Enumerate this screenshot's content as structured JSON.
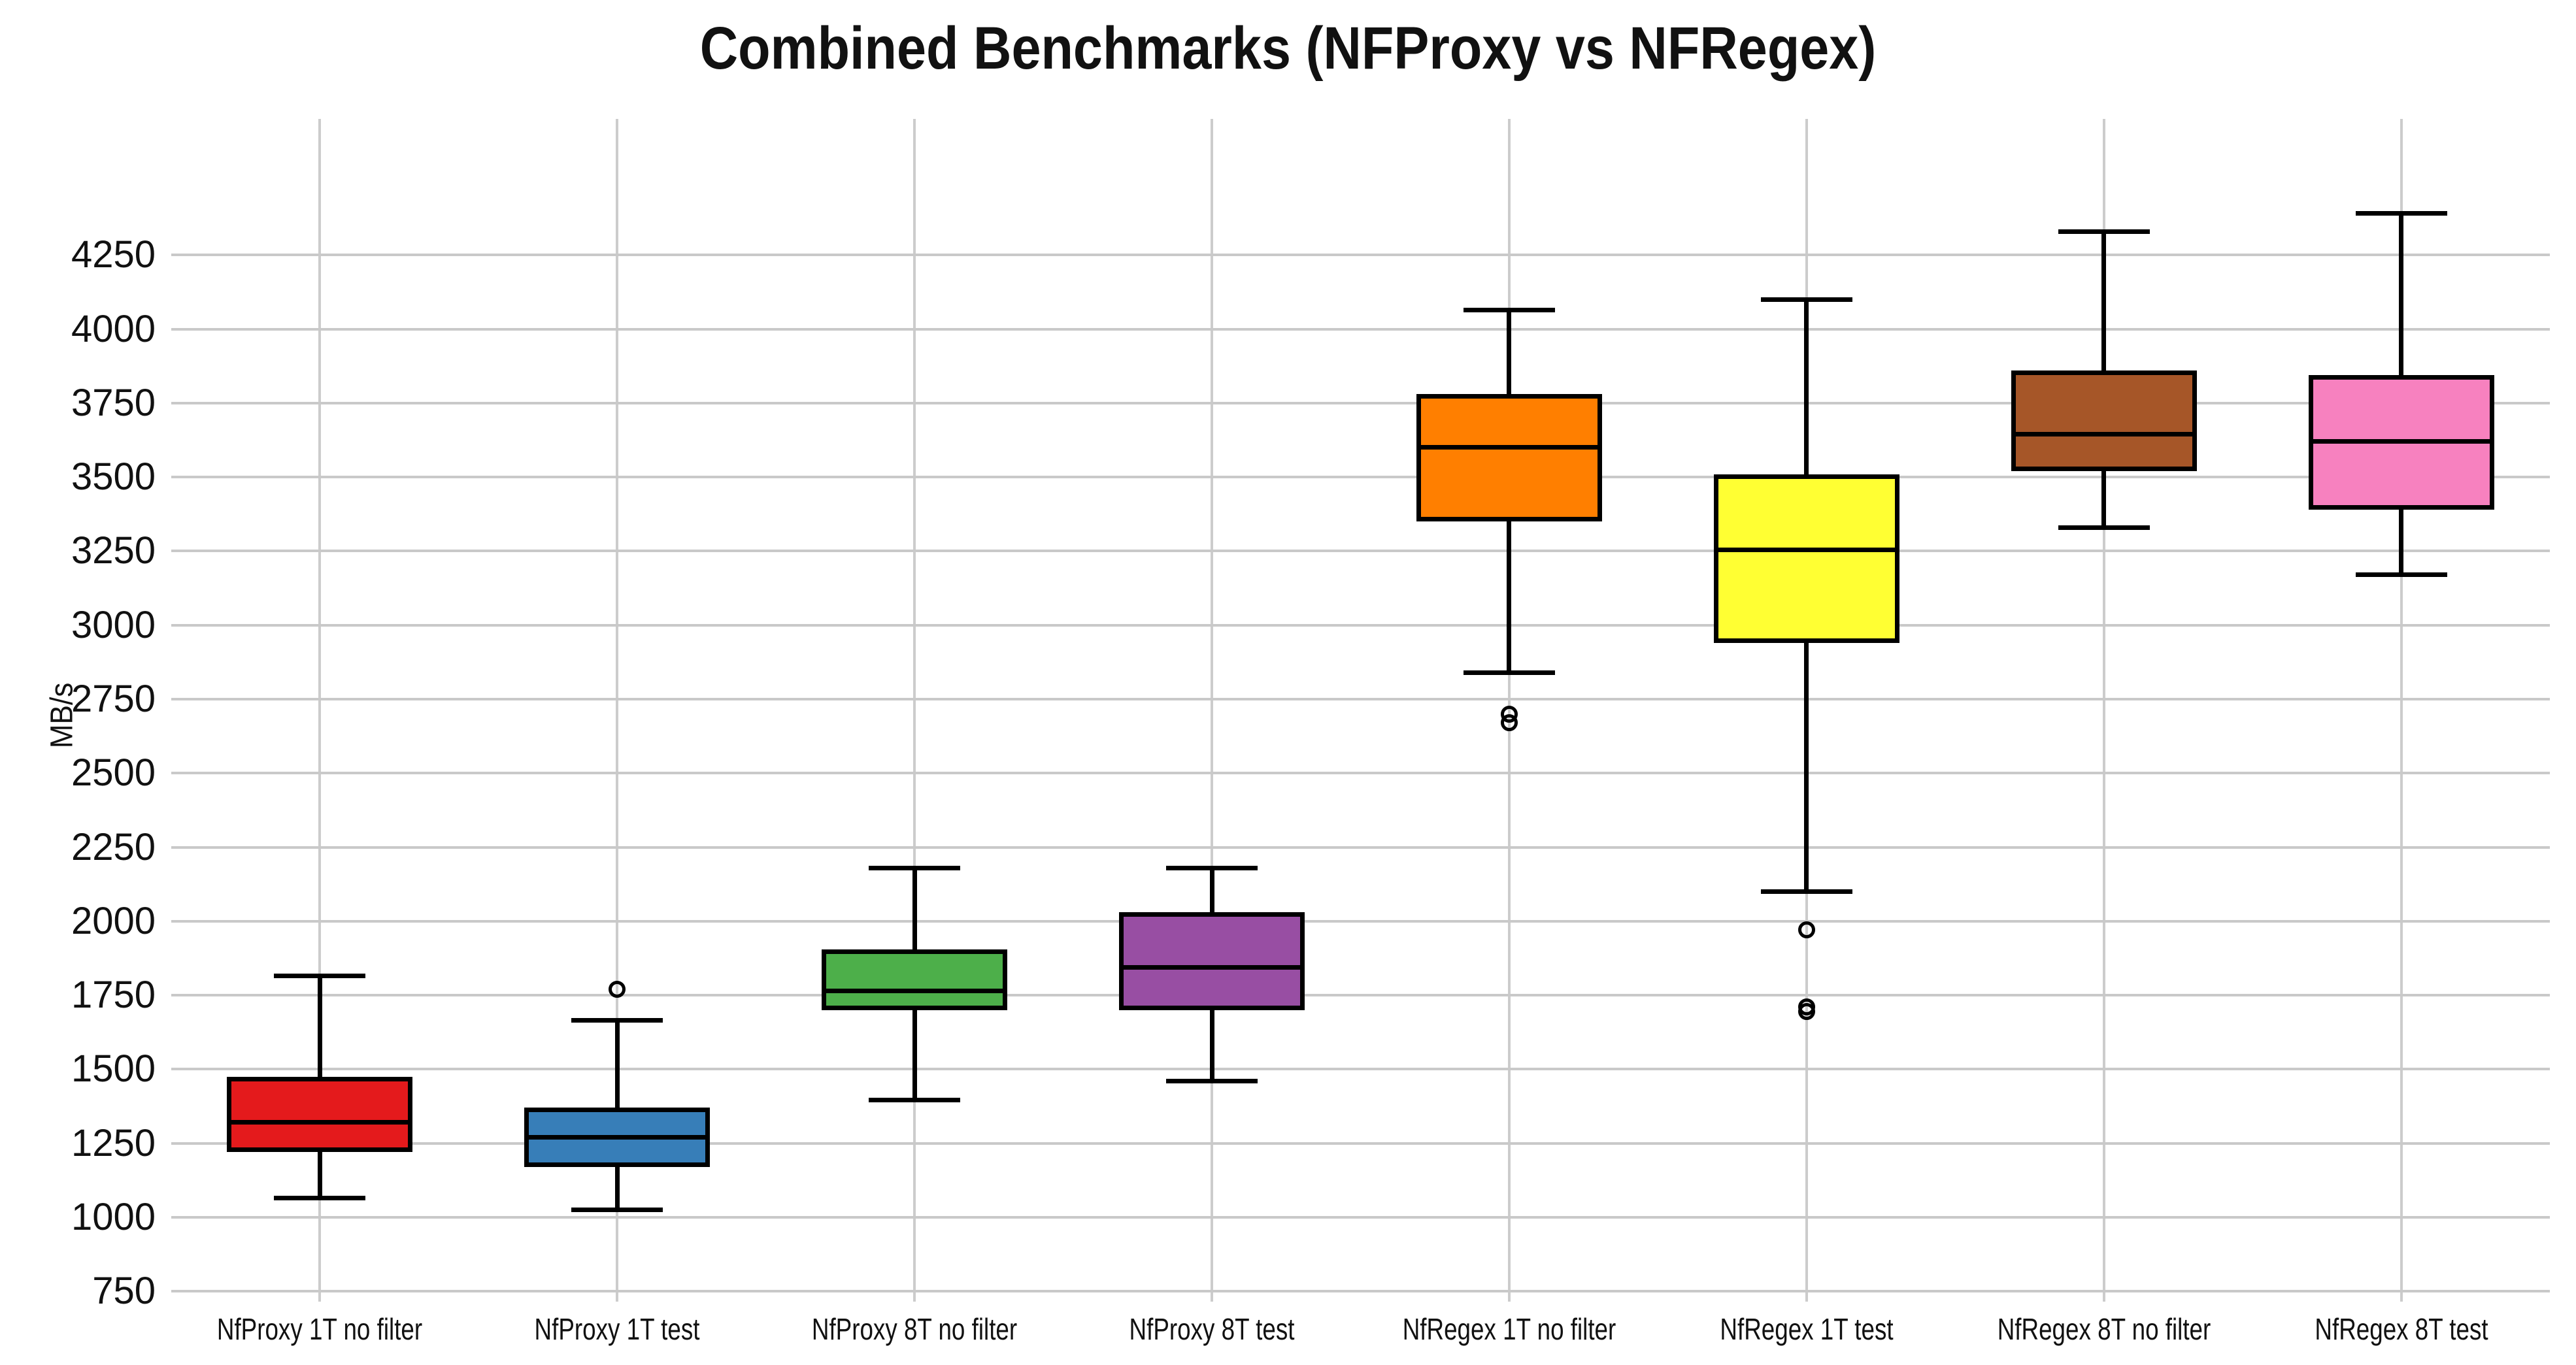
{
  "title": "Combined Benchmarks (NFProxy vs NFRegex)",
  "y_axis": {
    "label": "MB/s",
    "ticks": [
      750,
      1000,
      1250,
      1500,
      1750,
      2000,
      2250,
      2500,
      2750,
      3000,
      3250,
      3500,
      3750,
      4000,
      4250
    ]
  },
  "chart_data": {
    "type": "boxplot",
    "title": "Combined Benchmarks (NFProxy vs NFRegex)",
    "xlabel": "",
    "ylabel": "MB/s",
    "ylim": [
      715,
      4710
    ],
    "grid": true,
    "legend": false,
    "gridline_color": "#c9c9c9",
    "box_edge_color": "#000000",
    "categories": [
      "NfProxy 1T no filter",
      "NfProxy 1T test",
      "NfProxy 8T no filter",
      "NfProxy 8T test",
      "NfRegex 1T no filter",
      "NfRegex 1T test",
      "NfRegex 8T no filter",
      "NfRegex 8T test"
    ],
    "series": [
      {
        "label": "NfProxy 1T no filter",
        "color": "#e41a1c",
        "whisker_low": 1065,
        "q1": 1220,
        "median": 1320,
        "q3": 1475,
        "whisker_high": 1815,
        "outliers": []
      },
      {
        "label": "NfProxy 1T test",
        "color": "#377eb8",
        "whisker_low": 1025,
        "q1": 1170,
        "median": 1270,
        "q3": 1370,
        "whisker_high": 1665,
        "outliers": [
          1770
        ]
      },
      {
        "label": "NfProxy 8T no filter",
        "color": "#4daf4a",
        "whisker_low": 1395,
        "q1": 1700,
        "median": 1765,
        "q3": 1905,
        "whisker_high": 2180,
        "outliers": []
      },
      {
        "label": "NfProxy 8T test",
        "color": "#984ea3",
        "whisker_low": 1460,
        "q1": 1700,
        "median": 1845,
        "q3": 2030,
        "whisker_high": 2180,
        "outliers": []
      },
      {
        "label": "NfRegex 1T no filter",
        "color": "#ff7f00",
        "whisker_low": 2840,
        "q1": 3350,
        "median": 3600,
        "q3": 3780,
        "whisker_high": 4065,
        "outliers": [
          2700,
          2670
        ]
      },
      {
        "label": "NfRegex 1T test",
        "color": "#ffff33",
        "whisker_low": 2100,
        "q1": 2940,
        "median": 3255,
        "q3": 3510,
        "whisker_high": 4100,
        "outliers": [
          1970,
          1710,
          1695
        ]
      },
      {
        "label": "NfRegex 8T no filter",
        "color": "#a65628",
        "whisker_low": 3330,
        "q1": 3520,
        "median": 3645,
        "q3": 3860,
        "whisker_high": 4330,
        "outliers": []
      },
      {
        "label": "NfRegex 8T test",
        "color": "#f781bf",
        "whisker_low": 3170,
        "q1": 3390,
        "median": 3620,
        "q3": 3845,
        "whisker_high": 4390,
        "outliers": []
      }
    ]
  }
}
